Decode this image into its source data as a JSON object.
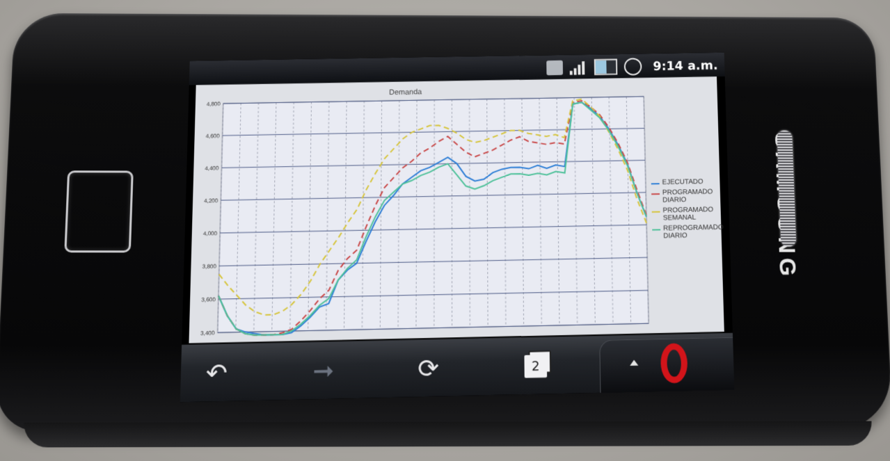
{
  "device": {
    "brand": "SAMSUNG"
  },
  "status_bar": {
    "time": "9:14 a.m."
  },
  "chart_data": {
    "type": "line",
    "title": "Demanda",
    "y_ticks": [
      "3,400",
      "3,600",
      "3,800",
      "4,000",
      "4,200",
      "4,400",
      "4,600",
      "4,800"
    ],
    "ylim": [
      3400,
      4800
    ],
    "x": [
      1,
      2,
      3,
      4,
      5,
      6,
      7,
      8,
      9,
      10,
      11,
      12,
      13,
      14,
      15,
      16,
      17,
      18,
      19,
      20,
      21,
      22,
      23,
      24,
      25,
      26,
      27,
      28,
      29,
      30,
      31,
      32,
      33,
      34,
      35,
      36,
      37,
      38,
      39,
      40,
      41,
      42,
      43,
      44,
      45,
      46,
      47,
      48
    ],
    "series": [
      {
        "name": "EJECUTADO",
        "color": "#2f7fd6",
        "values": [
          3620,
          3500,
          3420,
          3400,
          3390,
          3380,
          3370,
          3380,
          3390,
          3430,
          3480,
          3540,
          3560,
          3700,
          3760,
          3800,
          3930,
          4050,
          4150,
          4210,
          4280,
          4320,
          4360,
          4380,
          4410,
          4440,
          4400,
          4320,
          4290,
          4300,
          4340,
          4360,
          4370,
          4370,
          4360,
          4380,
          4360,
          4380,
          4370,
          4760,
          4770,
          4730,
          4680,
          4600,
          4500,
          4380,
          4200,
          4050
        ]
      },
      {
        "name": "PROGRAMADO\nDIARIO",
        "color": "#c94a4a",
        "values": [
          3620,
          3500,
          3420,
          3390,
          3380,
          3370,
          3370,
          3390,
          3410,
          3460,
          3520,
          3590,
          3640,
          3760,
          3830,
          3880,
          4020,
          4150,
          4260,
          4320,
          4380,
          4420,
          4470,
          4500,
          4540,
          4570,
          4520,
          4470,
          4440,
          4460,
          4480,
          4510,
          4540,
          4560,
          4530,
          4520,
          4510,
          4520,
          4510,
          4770,
          4780,
          4740,
          4690,
          4610,
          4510,
          4390,
          4220,
          4060
        ]
      },
      {
        "name": "PROGRAMADO\nSEMANAL",
        "color": "#d6c53e",
        "values": [
          3750,
          3680,
          3620,
          3560,
          3520,
          3500,
          3500,
          3520,
          3560,
          3620,
          3700,
          3800,
          3880,
          3960,
          4050,
          4130,
          4250,
          4350,
          4440,
          4500,
          4560,
          4600,
          4620,
          4640,
          4640,
          4620,
          4590,
          4550,
          4530,
          4540,
          4560,
          4580,
          4600,
          4600,
          4580,
          4570,
          4560,
          4570,
          4550,
          4780,
          4790,
          4740,
          4680,
          4580,
          4470,
          4340,
          4160,
          4010
        ]
      },
      {
        "name": "REPROGRAMADO\nDIARIO",
        "color": "#4fc19a",
        "values": [
          3620,
          3500,
          3420,
          3390,
          3380,
          3370,
          3370,
          3380,
          3400,
          3440,
          3490,
          3550,
          3590,
          3700,
          3770,
          3820,
          3960,
          4080,
          4180,
          4230,
          4280,
          4300,
          4330,
          4350,
          4380,
          4400,
          4330,
          4260,
          4240,
          4260,
          4290,
          4310,
          4330,
          4330,
          4320,
          4330,
          4320,
          4340,
          4330,
          4760,
          4770,
          4720,
          4670,
          4590,
          4490,
          4370,
          4200,
          4050
        ]
      }
    ]
  },
  "toolbar": {
    "tabs_count": "2"
  }
}
